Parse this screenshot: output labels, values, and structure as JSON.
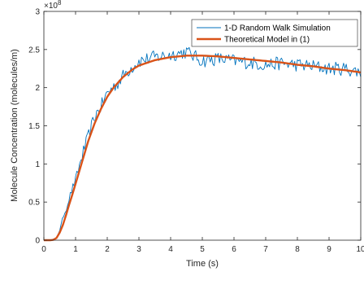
{
  "chart_data": {
    "type": "line",
    "xlabel": "Time (s)",
    "ylabel": "Molecule Concentration (molecules/m)",
    "xlim": [
      0,
      10
    ],
    "ylim": [
      0,
      3
    ],
    "y_multiplier_base": "×10",
    "y_multiplier_exponent": "8",
    "x_ticks": [
      "0",
      "1",
      "2",
      "3",
      "4",
      "5",
      "6",
      "7",
      "8",
      "9",
      "10"
    ],
    "y_ticks": [
      "0",
      "0.5",
      "1",
      "1.5",
      "2",
      "2.5",
      "3"
    ],
    "grid": false,
    "legend_position": "top-right",
    "series": [
      {
        "name": "1-D Random Walk Simulation",
        "color": "#0072BD",
        "style": "noisy",
        "x": [
          0,
          0.2,
          0.4,
          0.5,
          0.6,
          0.7,
          0.8,
          0.9,
          1.0,
          1.2,
          1.4,
          1.6,
          1.8,
          2.0,
          2.3,
          2.6,
          3.0,
          3.5,
          4.0,
          4.5,
          5.0,
          5.5,
          6.0,
          6.5,
          7.0,
          7.5,
          8.0,
          8.5,
          9.0,
          9.5,
          10.0
        ],
        "y": [
          0,
          0.0,
          0.03,
          0.13,
          0.3,
          0.4,
          0.55,
          0.68,
          0.78,
          1.1,
          1.35,
          1.62,
          1.75,
          1.93,
          2.05,
          2.2,
          2.35,
          2.4,
          2.43,
          2.47,
          2.35,
          2.38,
          2.35,
          2.33,
          2.3,
          2.32,
          2.3,
          2.28,
          2.25,
          2.25,
          2.2
        ]
      },
      {
        "name": "Theoretical Model in (1)",
        "color": "#D95319",
        "style": "smooth",
        "x": [
          0,
          0.2,
          0.3,
          0.4,
          0.5,
          0.6,
          0.7,
          0.8,
          0.9,
          1.0,
          1.2,
          1.4,
          1.6,
          1.8,
          2.0,
          2.2,
          2.5,
          2.8,
          3.0,
          3.5,
          4.0,
          4.5,
          5.0,
          5.5,
          6.0,
          6.5,
          7.0,
          7.5,
          8.0,
          8.5,
          9.0,
          9.5,
          10.0
        ],
        "y": [
          0,
          0.0,
          0.005,
          0.03,
          0.1,
          0.2,
          0.33,
          0.47,
          0.6,
          0.74,
          1.02,
          1.3,
          1.53,
          1.72,
          1.88,
          2.0,
          2.14,
          2.24,
          2.29,
          2.36,
          2.4,
          2.42,
          2.42,
          2.41,
          2.39,
          2.37,
          2.35,
          2.33,
          2.3,
          2.28,
          2.25,
          2.23,
          2.2
        ]
      }
    ]
  }
}
